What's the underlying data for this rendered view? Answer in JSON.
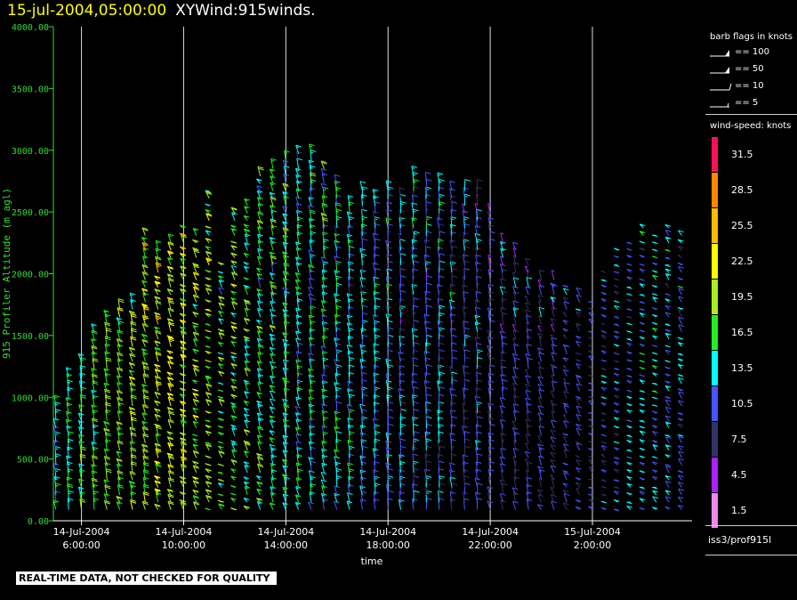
{
  "header": {
    "time": "15-jul-2004,05:00:00",
    "name": "XYWind:915winds."
  },
  "chart_data": {
    "type": "scatter",
    "mark": "wind-barb",
    "xlabel": "time",
    "ylabel": "915 Profiler Altitude (m agl)",
    "xlim_hours": [
      4.9,
      29.9
    ],
    "ylim": [
      0,
      4000
    ],
    "y_ticks": [
      {
        "value": 0,
        "label": "0.00"
      },
      {
        "value": 500,
        "label": "500.00"
      },
      {
        "value": 1000,
        "label": "1000.00"
      },
      {
        "value": 1500,
        "label": "1500.00"
      },
      {
        "value": 2000,
        "label": "2000.00"
      },
      {
        "value": 2500,
        "label": "2500.00"
      },
      {
        "value": 3000,
        "label": "3000.00"
      },
      {
        "value": 3500,
        "label": "3500.00"
      },
      {
        "value": 4000,
        "label": "4000.00"
      }
    ],
    "x_ticks": [
      {
        "hour": 6,
        "date": "14-Jul-2004",
        "time": "6:00:00"
      },
      {
        "hour": 10,
        "date": "14-Jul-2004",
        "time": "10:00:00"
      },
      {
        "hour": 14,
        "date": "14-Jul-2004",
        "time": "14:00:00"
      },
      {
        "hour": 18,
        "date": "14-Jul-2004",
        "time": "18:00:00"
      },
      {
        "hour": 22,
        "date": "14-Jul-2004",
        "time": "22:00:00"
      },
      {
        "hour": 26,
        "date": "15-Jul-2004",
        "time": "2:00:00"
      }
    ],
    "profile_interval_hours": 0.5,
    "gate_spacing_m": 60,
    "profiles": [
      {
        "t": 5.0,
        "top": 950,
        "spd": 14,
        "dir": 200
      },
      {
        "t": 5.5,
        "top": 1200,
        "spd": 15,
        "dir": 205
      },
      {
        "t": 6.0,
        "top": 1300,
        "spd": 16,
        "dir": 210
      },
      {
        "t": 6.5,
        "top": 1550,
        "spd": 17,
        "dir": 210
      },
      {
        "t": 7.0,
        "top": 1650,
        "spd": 18,
        "dir": 215
      },
      {
        "t": 7.5,
        "top": 1750,
        "spd": 18,
        "dir": 220
      },
      {
        "t": 8.0,
        "top": 1800,
        "spd": 19,
        "dir": 220
      },
      {
        "t": 8.5,
        "top": 2350,
        "spd": 19,
        "dir": 225
      },
      {
        "t": 9.0,
        "top": 2200,
        "spd": 20,
        "dir": 230
      },
      {
        "t": 9.5,
        "top": 2300,
        "spd": 21,
        "dir": 235
      },
      {
        "t": 10.0,
        "top": 2400,
        "spd": 20,
        "dir": 240
      },
      {
        "t": 10.5,
        "top": 2350,
        "spd": 19,
        "dir": 245
      },
      {
        "t": 11.0,
        "top": 2700,
        "spd": 18,
        "dir": 250
      },
      {
        "t": 11.5,
        "top": 2100,
        "spd": 17,
        "dir": 250
      },
      {
        "t": 12.0,
        "top": 2500,
        "spd": 17,
        "dir": 245
      },
      {
        "t": 12.5,
        "top": 2600,
        "spd": 16,
        "dir": 240
      },
      {
        "t": 13.0,
        "top": 2800,
        "spd": 16,
        "dir": 230
      },
      {
        "t": 13.5,
        "top": 2900,
        "spd": 15,
        "dir": 225
      },
      {
        "t": 14.0,
        "top": 2950,
        "spd": 15,
        "dir": 220
      },
      {
        "t": 14.5,
        "top": 3000,
        "spd": 14,
        "dir": 215
      },
      {
        "t": 15.0,
        "top": 3000,
        "spd": 14,
        "dir": 210
      },
      {
        "t": 15.5,
        "top": 2850,
        "spd": 14,
        "dir": 210
      },
      {
        "t": 16.0,
        "top": 2750,
        "spd": 13,
        "dir": 205
      },
      {
        "t": 16.5,
        "top": 2600,
        "spd": 13,
        "dir": 205
      },
      {
        "t": 17.0,
        "top": 2700,
        "spd": 12,
        "dir": 200
      },
      {
        "t": 17.5,
        "top": 2650,
        "spd": 12,
        "dir": 200
      },
      {
        "t": 18.0,
        "top": 2700,
        "spd": 12,
        "dir": 195
      },
      {
        "t": 18.5,
        "top": 2650,
        "spd": 11,
        "dir": 195
      },
      {
        "t": 19.0,
        "top": 2800,
        "spd": 11,
        "dir": 190
      },
      {
        "t": 19.5,
        "top": 2750,
        "spd": 11,
        "dir": 190
      },
      {
        "t": 20.0,
        "top": 2750,
        "spd": 11,
        "dir": 190
      },
      {
        "t": 20.5,
        "top": 2700,
        "spd": 10,
        "dir": 195
      },
      {
        "t": 21.0,
        "top": 2700,
        "spd": 10,
        "dir": 195
      },
      {
        "t": 21.5,
        "top": 2700,
        "spd": 10,
        "dir": 200
      },
      {
        "t": 22.0,
        "top": 2500,
        "spd": 9,
        "dir": 205
      },
      {
        "t": 22.5,
        "top": 2300,
        "spd": 9,
        "dir": 210
      },
      {
        "t": 23.0,
        "top": 2200,
        "spd": 9,
        "dir": 215
      },
      {
        "t": 23.5,
        "top": 2100,
        "spd": 9,
        "dir": 220
      },
      {
        "t": 24.0,
        "top": 2000,
        "spd": 9,
        "dir": 225
      },
      {
        "t": 24.5,
        "top": 1950,
        "spd": 9,
        "dir": 230
      },
      {
        "t": 25.0,
        "top": 1900,
        "spd": 9,
        "dir": 240
      },
      {
        "t": 25.5,
        "top": 1850,
        "spd": 9,
        "dir": 250
      },
      {
        "t": 26.0,
        "top": 1800,
        "spd": 9,
        "dir": 260
      },
      {
        "t": 26.5,
        "top": 2050,
        "spd": 10,
        "dir": 265
      },
      {
        "t": 27.0,
        "top": 2200,
        "spd": 11,
        "dir": 270
      },
      {
        "t": 27.5,
        "top": 2300,
        "spd": 12,
        "dir": 270
      },
      {
        "t": 28.0,
        "top": 2400,
        "spd": 13,
        "dir": 265
      },
      {
        "t": 28.5,
        "top": 2350,
        "spd": 13,
        "dir": 260
      },
      {
        "t": 29.0,
        "top": 2400,
        "spd": 12,
        "dir": 255
      },
      {
        "t": 29.5,
        "top": 2350,
        "spd": 11,
        "dir": 250
      }
    ],
    "speed_scale": [
      {
        "label": "31.5",
        "color": "#ff1155"
      },
      {
        "label": "28.5",
        "color": "#ff8800"
      },
      {
        "label": "25.5",
        "color": "#ffbb00"
      },
      {
        "label": "22.5",
        "color": "#ffff00"
      },
      {
        "label": "19.5",
        "color": "#aaee22"
      },
      {
        "label": "16.5",
        "color": "#22ee22"
      },
      {
        "label": "13.5",
        "color": "#00ffff"
      },
      {
        "label": "10.5",
        "color": "#4455ff"
      },
      {
        "label": "7.5",
        "color": "#333366"
      },
      {
        "label": "4.5",
        "color": "#aa22ff"
      },
      {
        "label": "1.5",
        "color": "#ee88ee"
      }
    ],
    "grid": {
      "vertical_at_ticks": true,
      "horizontal": false
    }
  },
  "legend": {
    "flags_title": "barb flags in knots",
    "flags": [
      {
        "label": "== 100",
        "knots": 100
      },
      {
        "label": "== 50",
        "knots": 50
      },
      {
        "label": "== 10",
        "knots": 10
      },
      {
        "label": "== 5",
        "knots": 5
      }
    ],
    "speed_title": "wind-speed: knots",
    "station": "iss3/prof915l"
  },
  "footer": {
    "qc_note": "REAL-TIME DATA, NOT CHECKED FOR QUALITY"
  }
}
